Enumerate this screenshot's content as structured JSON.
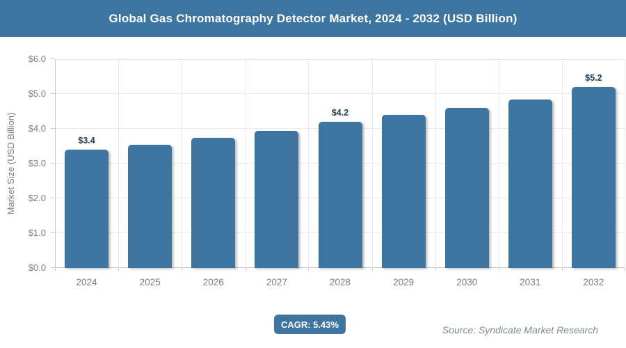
{
  "header": {
    "title": "Global Gas Chromatography Detector Market, 2024 - 2032 (USD Billion)"
  },
  "chart_data": {
    "type": "bar",
    "title": "Global Gas Chromatography Detector Market, 2024 - 2032 (USD Billion)",
    "categories": [
      "2024",
      "2025",
      "2026",
      "2027",
      "2028",
      "2029",
      "2030",
      "2031",
      "2032"
    ],
    "values": [
      3.4,
      3.55,
      3.75,
      3.95,
      4.2,
      4.4,
      4.6,
      4.85,
      5.2
    ],
    "data_labels": [
      "$3.4",
      null,
      null,
      null,
      "$4.2",
      null,
      null,
      null,
      "$5.2"
    ],
    "xlabel": "",
    "ylabel": "Market Size (USD Billion)",
    "ylim": [
      0,
      6
    ],
    "ytick_labels": [
      "$0.0",
      "$1.0",
      "$2.0",
      "$3.0",
      "$4.0",
      "$5.0",
      "$6.0"
    ],
    "grid": true,
    "legend": "none"
  },
  "footer": {
    "cagr_label": "CAGR: 5.43%",
    "source": "Source: Syndicate Market Research"
  },
  "colors": {
    "accent": "#3e74a0",
    "title_text": "#ffffff",
    "data_label": "#1f3b57",
    "axis_text": "#7c7c7c",
    "grid": "#e9e9e9",
    "axis_line": "#c6c6c6",
    "source_text": "#7d8b95"
  }
}
